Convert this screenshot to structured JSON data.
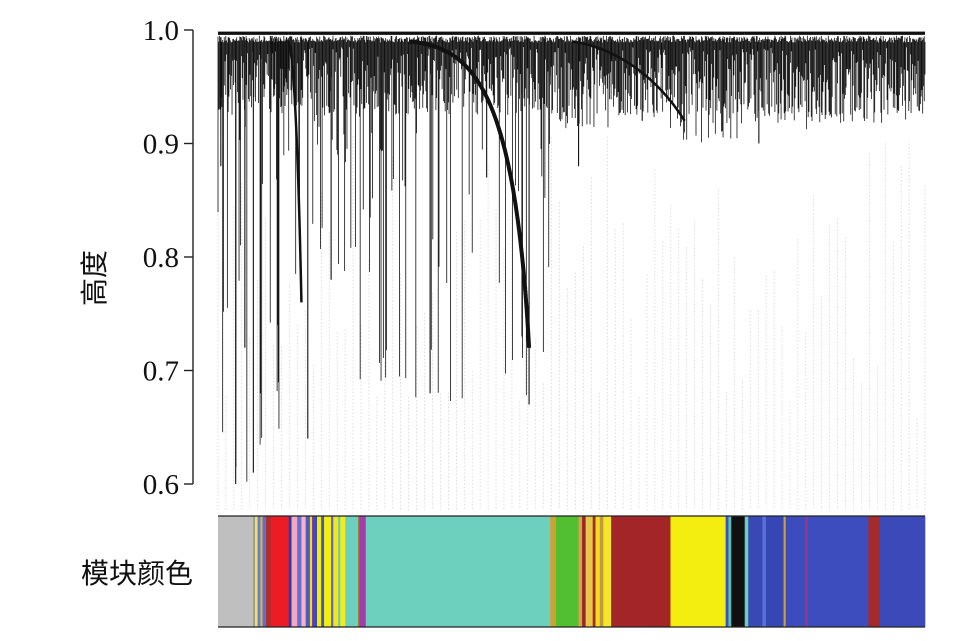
{
  "chart_data": {
    "type": "dendrogram",
    "ylabel": "高度",
    "ylim": [
      0.6,
      1.0
    ],
    "yticks": [
      {
        "value": 1.0,
        "label": "1.0"
      },
      {
        "value": 0.9,
        "label": "0.9"
      },
      {
        "value": 0.8,
        "label": "0.8"
      },
      {
        "value": 0.7,
        "label": "0.7"
      },
      {
        "value": 0.6,
        "label": "0.6"
      }
    ],
    "color_bar_label": "模块颜色",
    "module_colors": [
      {
        "color": "#bfbfbf",
        "from": 0.0,
        "to": 0.05
      },
      {
        "color": "#8c8c8c",
        "from": 0.05,
        "to": 0.052
      },
      {
        "color": "#e9e06a",
        "from": 0.052,
        "to": 0.056
      },
      {
        "color": "#6c7cd0",
        "from": 0.056,
        "to": 0.06
      },
      {
        "color": "#d8b24a",
        "from": 0.06,
        "to": 0.063
      },
      {
        "color": "#5b6fd1",
        "from": 0.063,
        "to": 0.068
      },
      {
        "color": "#b52a2a",
        "from": 0.068,
        "to": 0.075
      },
      {
        "color": "#ec1c24",
        "from": 0.075,
        "to": 0.1
      },
      {
        "color": "#2e3aa8",
        "from": 0.1,
        "to": 0.104
      },
      {
        "color": "#f4a7c0",
        "from": 0.104,
        "to": 0.112
      },
      {
        "color": "#6770d0",
        "from": 0.112,
        "to": 0.118
      },
      {
        "color": "#f6b3c8",
        "from": 0.118,
        "to": 0.124
      },
      {
        "color": "#4d5bc2",
        "from": 0.124,
        "to": 0.13
      },
      {
        "color": "#e6e020",
        "from": 0.13,
        "to": 0.133
      },
      {
        "color": "#7a3a9a",
        "from": 0.133,
        "to": 0.136
      },
      {
        "color": "#3b47b8",
        "from": 0.136,
        "to": 0.14
      },
      {
        "color": "#f0ea10",
        "from": 0.14,
        "to": 0.146
      },
      {
        "color": "#4655c0",
        "from": 0.146,
        "to": 0.15
      },
      {
        "color": "#f2ec18",
        "from": 0.15,
        "to": 0.16
      },
      {
        "color": "#5a64c8",
        "from": 0.16,
        "to": 0.163
      },
      {
        "color": "#efe816",
        "from": 0.163,
        "to": 0.17
      },
      {
        "color": "#6ec9ba",
        "from": 0.17,
        "to": 0.173
      },
      {
        "color": "#f3ed1a",
        "from": 0.173,
        "to": 0.18
      },
      {
        "color": "#6dcfbe",
        "from": 0.18,
        "to": 0.198
      },
      {
        "color": "#8a8a30",
        "from": 0.198,
        "to": 0.2
      },
      {
        "color": "#a83ab0",
        "from": 0.2,
        "to": 0.209
      },
      {
        "color": "#6dcfbe",
        "from": 0.209,
        "to": 0.47
      },
      {
        "color": "#d2a030",
        "from": 0.47,
        "to": 0.478
      },
      {
        "color": "#52bf30",
        "from": 0.478,
        "to": 0.51
      },
      {
        "color": "#d4a54a",
        "from": 0.51,
        "to": 0.515
      },
      {
        "color": "#9b2426",
        "from": 0.515,
        "to": 0.52
      },
      {
        "color": "#e6c84a",
        "from": 0.52,
        "to": 0.53
      },
      {
        "color": "#a52a2a",
        "from": 0.53,
        "to": 0.534
      },
      {
        "color": "#f2e020",
        "from": 0.534,
        "to": 0.54
      },
      {
        "color": "#c89a40",
        "from": 0.54,
        "to": 0.545
      },
      {
        "color": "#f3e72a",
        "from": 0.545,
        "to": 0.556
      },
      {
        "color": "#a32527",
        "from": 0.556,
        "to": 0.64
      },
      {
        "color": "#f3ee10",
        "from": 0.64,
        "to": 0.718
      },
      {
        "color": "#3c52c4",
        "from": 0.718,
        "to": 0.722
      },
      {
        "color": "#5fbfb0",
        "from": 0.722,
        "to": 0.726
      },
      {
        "color": "#101010",
        "from": 0.726,
        "to": 0.745
      },
      {
        "color": "#6dcfbe",
        "from": 0.745,
        "to": 0.75
      },
      {
        "color": "#3849b5",
        "from": 0.75,
        "to": 0.77
      },
      {
        "color": "#5a70d8",
        "from": 0.77,
        "to": 0.775
      },
      {
        "color": "#3646b4",
        "from": 0.775,
        "to": 0.8
      },
      {
        "color": "#c8a040",
        "from": 0.8,
        "to": 0.803
      },
      {
        "color": "#3d4cbd",
        "from": 0.803,
        "to": 0.83
      },
      {
        "color": "#8a3a90",
        "from": 0.83,
        "to": 0.834
      },
      {
        "color": "#3e4dbe",
        "from": 0.834,
        "to": 0.92
      },
      {
        "color": "#a52a2a",
        "from": 0.92,
        "to": 0.936
      },
      {
        "color": "#3b4ab8",
        "from": 0.936,
        "to": 1.0
      }
    ],
    "modules": [
      {
        "name": "grey",
        "from": 0.0,
        "to": 0.075,
        "min_height": 0.6
      },
      {
        "name": "red",
        "from": 0.075,
        "to": 0.1,
        "min_height": 0.64
      },
      {
        "name": "pink",
        "from": 0.1,
        "to": 0.2,
        "min_height": 0.78
      },
      {
        "name": "turquoise",
        "from": 0.2,
        "to": 0.47,
        "min_height": 0.67
      },
      {
        "name": "green",
        "from": 0.47,
        "to": 0.556,
        "min_height": 0.9
      },
      {
        "name": "brown",
        "from": 0.556,
        "to": 0.64,
        "min_height": 0.92
      },
      {
        "name": "yellow",
        "from": 0.64,
        "to": 0.745,
        "min_height": 0.88
      },
      {
        "name": "blue",
        "from": 0.745,
        "to": 1.0,
        "min_height": 0.91
      }
    ]
  }
}
